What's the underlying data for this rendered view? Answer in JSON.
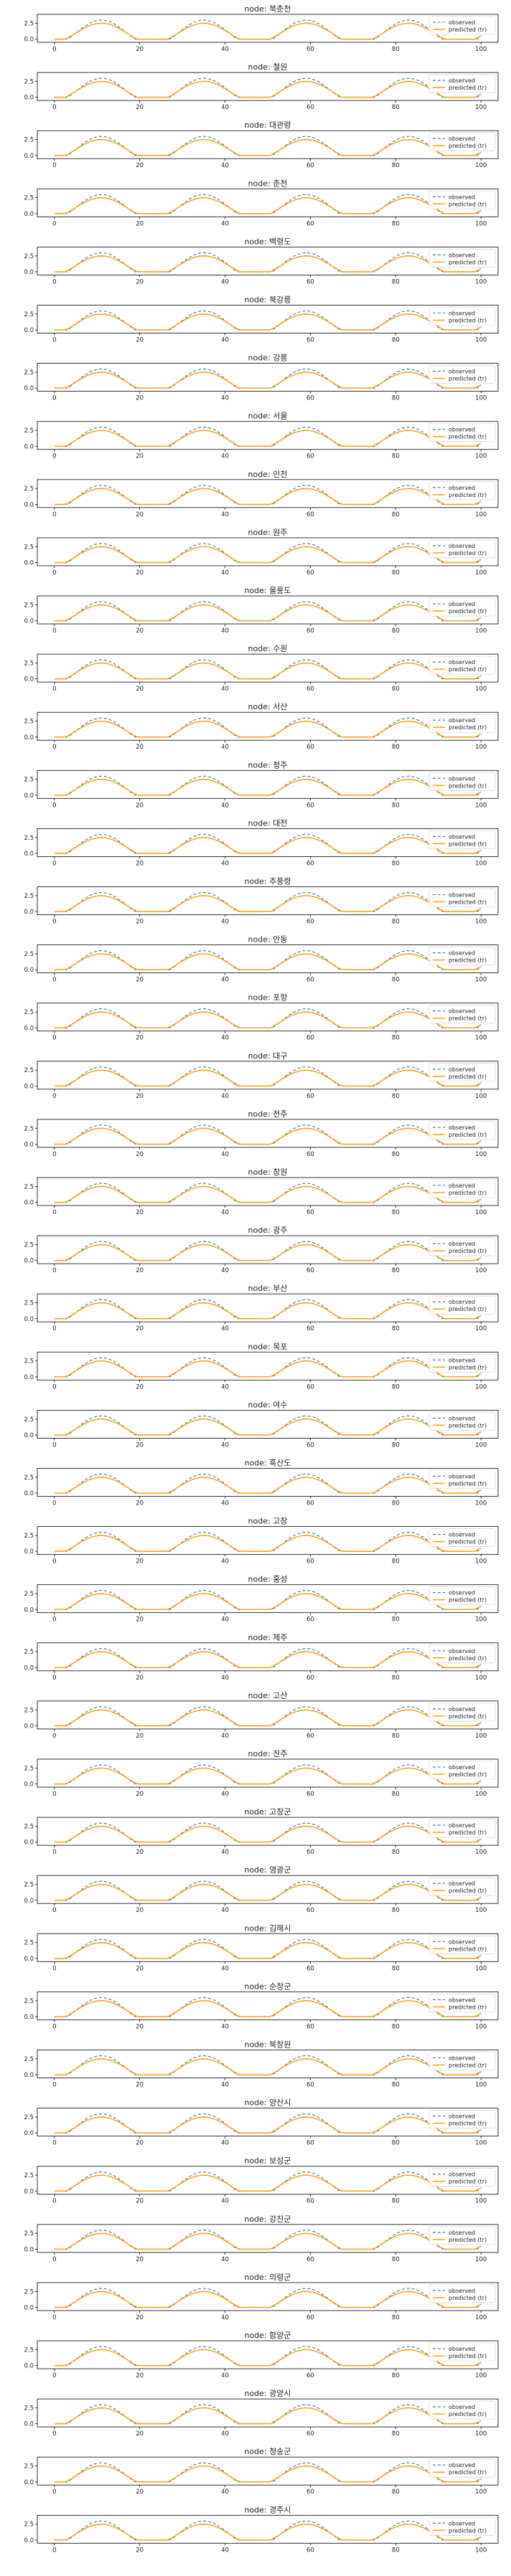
{
  "chart_data": {
    "type": "line",
    "layout": "vertical-stack",
    "title_prefix": "node: ",
    "x_ticks": [
      0,
      20,
      40,
      60,
      80,
      100
    ],
    "xlim": [
      -4,
      104
    ],
    "y_ticks": [
      0.0,
      2.5
    ],
    "y_tick_labels": [
      "0.0",
      "2.5"
    ],
    "ylim": [
      -0.5,
      3.9
    ],
    "legend": {
      "placement": "upper-right",
      "entries": [
        "observed",
        "predicted (tr)"
      ]
    },
    "colors": {
      "observed": "#1f77b4",
      "predicted": "#ff9f0e",
      "axes": "#000000"
    },
    "series_model": {
      "day_length": 24,
      "x_range": [
        0,
        100
      ],
      "observed": {
        "line": "dashed",
        "peak": 3.0,
        "day_start": 3,
        "day_end": 19
      },
      "predicted": {
        "line": "solid",
        "peak": 2.5,
        "day_start": 2.5,
        "day_end": 19.5
      }
    },
    "panels": [
      "북춘천",
      "철원",
      "대관령",
      "춘천",
      "백령도",
      "북강릉",
      "강릉",
      "서울",
      "인천",
      "원주",
      "울릉도",
      "수원",
      "서산",
      "청주",
      "대전",
      "추풍령",
      "안동",
      "포항",
      "대구",
      "전주",
      "창원",
      "광주",
      "부산",
      "목포",
      "여수",
      "흑산도",
      "고창",
      "홍성",
      "제주",
      "고산",
      "진주",
      "고창군",
      "영광군",
      "김해시",
      "순창군",
      "북창원",
      "양산시",
      "보성군",
      "강진군",
      "의령군",
      "함양군",
      "광양시",
      "청송군",
      "경주시"
    ]
  }
}
